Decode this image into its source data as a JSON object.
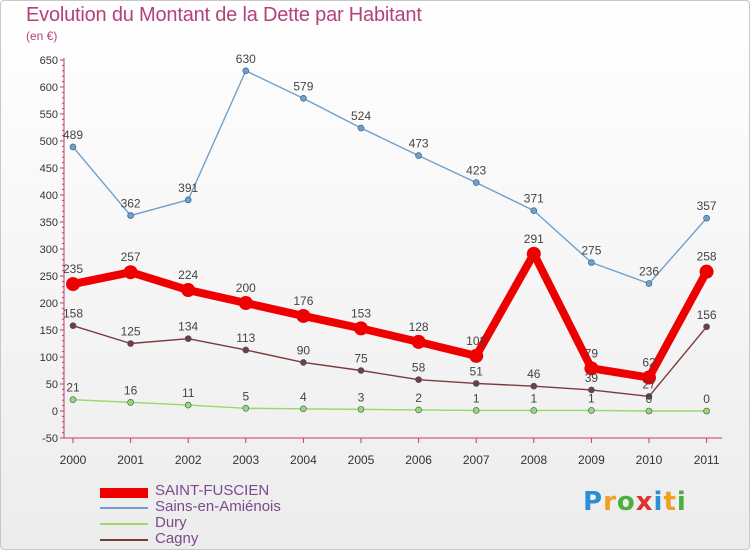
{
  "header": {
    "title": "Evolution du Montant de la Dette par Habitant",
    "subtitle": "(en €)"
  },
  "chart_data": {
    "type": "line",
    "title": "Evolution du Montant de la Dette par Habitant",
    "subtitle": "(en €)",
    "categories": [
      "2000",
      "2001",
      "2002",
      "2003",
      "2004",
      "2005",
      "2006",
      "2007",
      "2008",
      "2009",
      "2010",
      "2011"
    ],
    "ylim": [
      -50,
      650
    ],
    "yticks": [
      -50,
      0,
      50,
      100,
      150,
      200,
      250,
      300,
      350,
      400,
      450,
      500,
      550,
      600,
      650
    ],
    "grid": false,
    "legend_position": "bottom-left",
    "series": [
      {
        "name": "SAINT-FUSCIEN",
        "color": "#ee0000",
        "values": [
          235,
          257,
          224,
          200,
          176,
          153,
          128,
          102,
          291,
          79,
          62,
          258
        ],
        "labels": [
          "235",
          "257",
          "224",
          "200",
          "176",
          "153",
          "128",
          "102",
          "291",
          "79",
          "62",
          "258"
        ]
      },
      {
        "name": "Sains-en-Amiénois",
        "color": "#6fa0cc",
        "values": [
          489,
          362,
          391,
          630,
          579,
          524,
          473,
          423,
          371,
          275,
          236,
          357
        ],
        "labels": [
          "489",
          "362",
          "391",
          "630",
          "579",
          "524",
          "473",
          "423",
          "371",
          "275",
          "236",
          "357"
        ]
      },
      {
        "name": "Dury",
        "color": "#9ad86a",
        "values": [
          21,
          16,
          11,
          5,
          4,
          3,
          2,
          1,
          1,
          1,
          0,
          0
        ],
        "labels": [
          "21",
          "16",
          "11",
          "5",
          "4",
          "3",
          "2",
          "1",
          "1",
          "1",
          "0",
          "0"
        ]
      },
      {
        "name": "Cagny",
        "color": "#7a3b3b",
        "values": [
          158,
          125,
          134,
          113,
          90,
          75,
          58,
          51,
          46,
          39,
          27,
          156
        ],
        "labels": [
          "158",
          "125",
          "134",
          "113",
          "90",
          "75",
          "58",
          "51",
          "46",
          "39",
          "27",
          "156"
        ]
      }
    ]
  },
  "legend": {
    "items": [
      {
        "label": "SAINT-FUSCIEN",
        "color": "#ee0000"
      },
      {
        "label": "Sains-en-Amiénois",
        "color": "#6fa0cc"
      },
      {
        "label": "Dury",
        "color": "#9ad86a"
      },
      {
        "label": "Cagny",
        "color": "#7a3b3b"
      }
    ]
  },
  "logo": {
    "letters": [
      "P",
      "r",
      "o",
      "x",
      "i",
      "t",
      "i"
    ],
    "colors": [
      "#2a8fd6",
      "#f0a020",
      "#4ab040",
      "#e03030",
      "#2a8fd6",
      "#f0a020",
      "#4ab040"
    ]
  }
}
